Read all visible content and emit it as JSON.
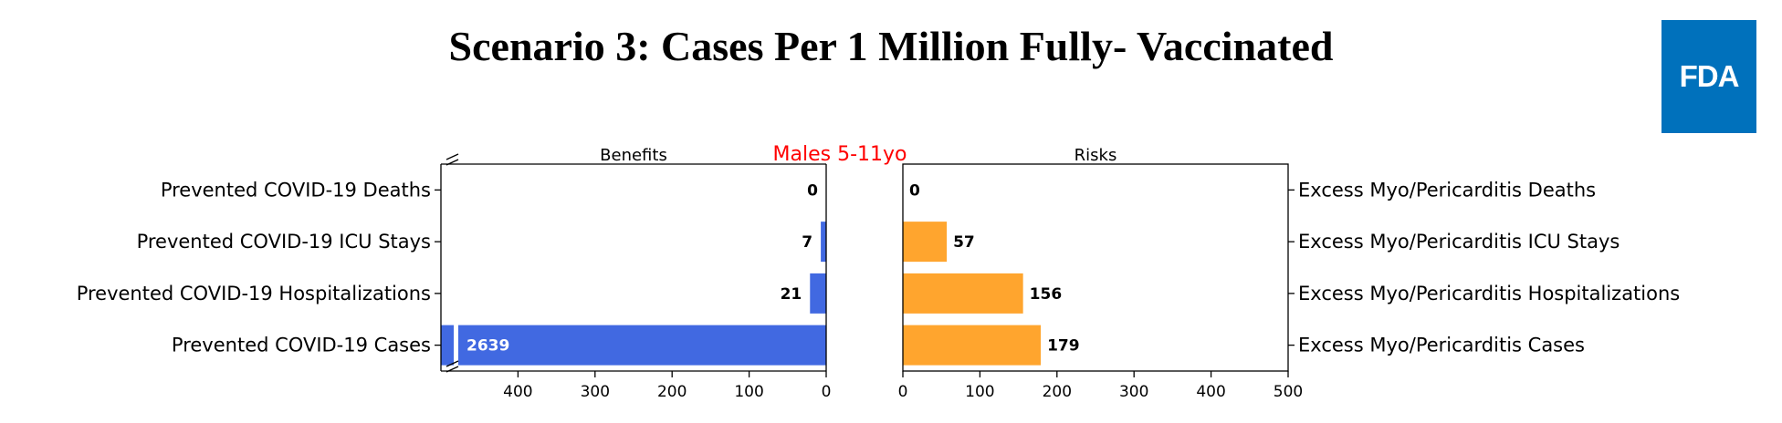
{
  "title": "Scenario 3: Cases Per 1 Million Fully- Vaccinated",
  "logo": "FDA",
  "chart_data": {
    "type": "bar",
    "orientation": "horizontal",
    "subtitle": "Males 5-11yo",
    "colors": {
      "benefits": "#4169e1",
      "risks": "#ffa52e",
      "subtitle": "#ff0000"
    },
    "panels": [
      {
        "name": "benefits",
        "title": "Benefits",
        "axis": "inverted",
        "xlim": [
          0,
          500
        ],
        "axis_break": true,
        "xticks": [
          400,
          300,
          200,
          100,
          0
        ],
        "categories": [
          "Prevented COVID-19 Deaths",
          "Prevented COVID-19 ICU Stays",
          "Prevented COVID-19 Hospitalizations",
          "Prevented COVID-19 Cases"
        ],
        "values": [
          0,
          7,
          21,
          2639
        ],
        "labels": [
          "0",
          "7",
          "21",
          "2639"
        ]
      },
      {
        "name": "risks",
        "title": "Risks",
        "axis": "normal",
        "xlim": [
          0,
          500
        ],
        "xticks": [
          0,
          100,
          200,
          300,
          400,
          500
        ],
        "categories": [
          "Excess Myo/Pericarditis Deaths",
          "Excess Myo/Pericarditis ICU Stays",
          "Excess Myo/Pericarditis Hospitalizations",
          "Excess Myo/Pericarditis Cases"
        ],
        "values": [
          0,
          57,
          156,
          179
        ],
        "labels": [
          "0",
          "57",
          "156",
          "179"
        ]
      }
    ]
  }
}
